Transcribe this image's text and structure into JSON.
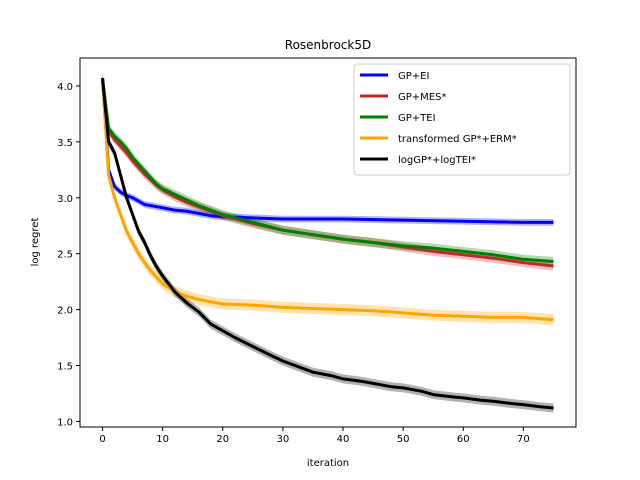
{
  "chart_data": {
    "type": "line",
    "title": "Rosenbrock5D",
    "xlabel": "iteration",
    "ylabel": "log regret",
    "xlim": [
      -3.75,
      78.75
    ],
    "ylim": [
      0.95,
      4.25
    ],
    "xticks": [
      0,
      10,
      20,
      30,
      40,
      50,
      60,
      70
    ],
    "yticks": [
      1.0,
      1.5,
      2.0,
      2.5,
      3.0,
      3.5,
      4.0
    ],
    "grid": false,
    "legend_position": "top-right",
    "series": [
      {
        "name": "GP+EI",
        "color": "#0000ff",
        "x": [
          0,
          1,
          2,
          3,
          4,
          5,
          6,
          7,
          8,
          9,
          10,
          12,
          14,
          16,
          18,
          20,
          25,
          30,
          40,
          50,
          60,
          70,
          75
        ],
        "y": [
          4.07,
          3.25,
          3.1,
          3.05,
          3.02,
          3.0,
          2.97,
          2.94,
          2.93,
          2.92,
          2.91,
          2.89,
          2.88,
          2.86,
          2.84,
          2.83,
          2.82,
          2.81,
          2.81,
          2.8,
          2.79,
          2.78,
          2.78
        ],
        "band": 0.03
      },
      {
        "name": "GP+MES*",
        "color": "#c0292b",
        "x": [
          0,
          1,
          2,
          3,
          4,
          5,
          6,
          7,
          8,
          9,
          10,
          12,
          14,
          16,
          18,
          20,
          25,
          30,
          35,
          40,
          45,
          50,
          55,
          60,
          65,
          70,
          75
        ],
        "y": [
          4.07,
          3.6,
          3.52,
          3.46,
          3.4,
          3.33,
          3.27,
          3.21,
          3.16,
          3.11,
          3.07,
          3.01,
          2.96,
          2.92,
          2.88,
          2.84,
          2.77,
          2.71,
          2.67,
          2.63,
          2.6,
          2.56,
          2.52,
          2.49,
          2.46,
          2.42,
          2.39
        ],
        "band": 0.04
      },
      {
        "name": "GP+TEI",
        "color": "#008000",
        "x": [
          0,
          1,
          2,
          3,
          4,
          5,
          6,
          7,
          8,
          9,
          10,
          12,
          14,
          16,
          18,
          20,
          25,
          30,
          35,
          40,
          45,
          50,
          55,
          60,
          65,
          70,
          75
        ],
        "y": [
          4.07,
          3.62,
          3.55,
          3.5,
          3.44,
          3.36,
          3.3,
          3.24,
          3.18,
          3.12,
          3.08,
          3.03,
          2.98,
          2.93,
          2.89,
          2.85,
          2.78,
          2.71,
          2.67,
          2.63,
          2.6,
          2.57,
          2.55,
          2.52,
          2.49,
          2.45,
          2.43
        ],
        "band": 0.04
      },
      {
        "name": "transformed GP*+ERM*",
        "color": "#ffa500",
        "x": [
          0,
          1,
          2,
          3,
          4,
          5,
          6,
          7,
          8,
          9,
          10,
          12,
          14,
          16,
          18,
          20,
          25,
          30,
          35,
          40,
          45,
          50,
          55,
          60,
          65,
          70,
          75
        ],
        "y": [
          4.07,
          3.2,
          3.0,
          2.85,
          2.7,
          2.6,
          2.5,
          2.42,
          2.35,
          2.29,
          2.23,
          2.16,
          2.12,
          2.09,
          2.07,
          2.05,
          2.04,
          2.02,
          2.01,
          2.0,
          1.99,
          1.97,
          1.95,
          1.94,
          1.93,
          1.93,
          1.91
        ],
        "band": 0.05
      },
      {
        "name": "logGP*+logTEI*",
        "color": "#000000",
        "x": [
          0,
          1,
          2,
          3,
          4,
          5,
          6,
          7,
          8,
          9,
          10,
          12,
          14,
          16,
          18,
          20,
          22,
          25,
          28,
          30,
          33,
          35,
          38,
          40,
          43,
          45,
          48,
          50,
          53,
          55,
          58,
          60,
          63,
          65,
          68,
          70,
          73,
          75
        ],
        "y": [
          4.07,
          3.5,
          3.4,
          3.2,
          3.0,
          2.85,
          2.7,
          2.6,
          2.48,
          2.38,
          2.3,
          2.16,
          2.06,
          1.98,
          1.87,
          1.81,
          1.75,
          1.67,
          1.59,
          1.54,
          1.48,
          1.44,
          1.41,
          1.38,
          1.36,
          1.34,
          1.31,
          1.3,
          1.27,
          1.24,
          1.22,
          1.21,
          1.19,
          1.18,
          1.16,
          1.15,
          1.13,
          1.12
        ],
        "band": 0.04
      }
    ]
  }
}
